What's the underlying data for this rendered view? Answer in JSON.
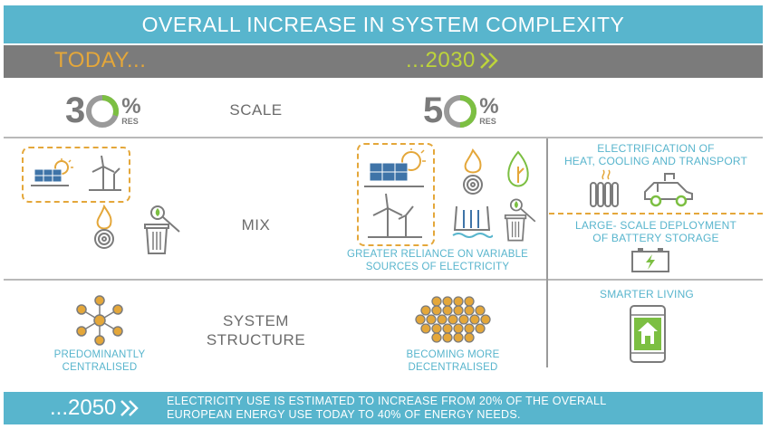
{
  "header": {
    "title": "OVERALL INCREASE IN SYSTEM COMPLEXITY"
  },
  "timeline": {
    "today": "TODAY...",
    "future": "...2030"
  },
  "scale": {
    "label": "SCALE",
    "today": {
      "digit": "3",
      "percent_sign": "%",
      "unit": "RES",
      "value": 30
    },
    "future": {
      "digit": "5",
      "percent_sign": "%",
      "unit": "RES",
      "value": 50
    }
  },
  "mix": {
    "label": "MIX",
    "future_note": [
      "GREATER RELIANCE ON VARIABLE",
      "SOURCES OF ELECTRICITY"
    ]
  },
  "electrification": {
    "title": [
      "ELECTRIFICATION OF",
      "HEAT, COOLING AND TRANSPORT"
    ]
  },
  "storage": {
    "title": [
      "LARGE- SCALE DEPLOYMENT",
      "OF BATTERY STORAGE"
    ]
  },
  "structure": {
    "label": [
      "SYSTEM",
      "STRUCTURE"
    ],
    "today_note": [
      "PREDOMINANTLY",
      "CENTRALISED"
    ],
    "future_note": [
      "BECOMING MORE",
      "DECENTRALISED"
    ]
  },
  "smart": {
    "title": "SMARTER LIVING"
  },
  "footer": {
    "year": "...2050",
    "text": [
      "ELECTRICITY USE IS ESTIMATED TO INCREASE FROM 20% OF THE OVERALL",
      "EUROPEAN ENERGY USE TODAY TO 40% OF ENERGY NEEDS."
    ]
  },
  "colors": {
    "blue": "#58b5cd",
    "grey": "#7b7b7b",
    "orange": "#e4a73a",
    "green": "#7cbf42",
    "lime": "#bdd43b"
  }
}
